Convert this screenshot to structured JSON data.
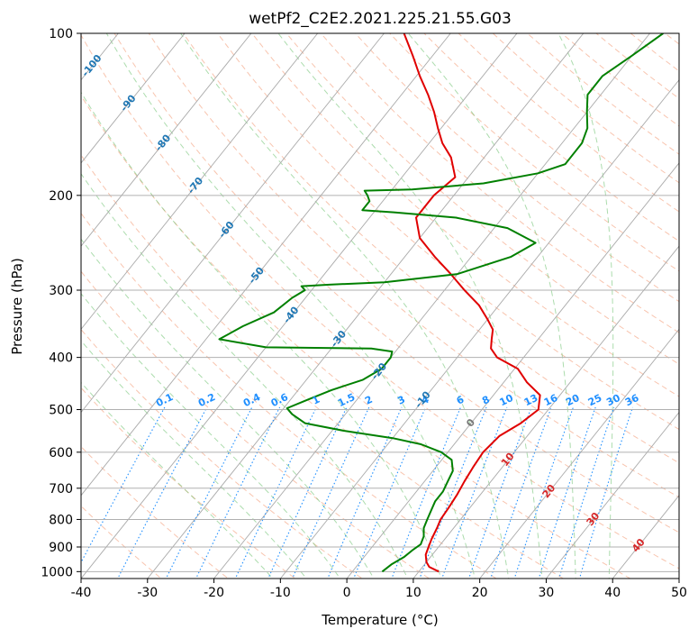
{
  "chart_data": {
    "type": "line",
    "title": "wetPf2_C2E2.2021.225.21.55.G03",
    "xlabel": "Temperature (°C)",
    "ylabel": "Pressure (hPa)",
    "xlim": [
      -40,
      50
    ],
    "ylim": [
      1030,
      100
    ],
    "y_scale": "log",
    "skew": true,
    "grid": true,
    "x_ticks": [
      -40,
      -30,
      -20,
      -10,
      0,
      10,
      20,
      30,
      40,
      50
    ],
    "y_ticks": [
      100,
      200,
      300,
      400,
      500,
      600,
      700,
      800,
      900,
      1000
    ],
    "colors": {
      "temperature": "#e00000",
      "dewpoint": "#008000",
      "mixing_ratio_labels": "#1f8fff",
      "isotherm_labels_cold": "#1f77b4",
      "isotherm_labels_warm": "#d62728",
      "isotherm_label_zero": "#777777",
      "dry_adiabats": "#f4a582",
      "moist_adiabats": "#74c476",
      "isotherms": "#aaaaaa"
    },
    "isotherm_labels": [
      "-100",
      "-90",
      "-80",
      "-70",
      "-60",
      "-50",
      "-40",
      "-30",
      "-20",
      "-10",
      "0",
      "10",
      "20",
      "30",
      "40"
    ],
    "mixing_ratio_labels": [
      "0.1",
      "0.2",
      "0.4",
      "0.6",
      "1",
      "1.5",
      "2",
      "3",
      "4",
      "6",
      "8",
      "10",
      "13",
      "16",
      "20",
      "25",
      "30",
      "36"
    ],
    "series": [
      {
        "key": "temperature",
        "values": [
          [
            1000,
            13
          ],
          [
            980,
            11
          ],
          [
            960,
            10
          ],
          [
            930,
            9
          ],
          [
            900,
            8.5
          ],
          [
            870,
            8
          ],
          [
            830,
            7.5
          ],
          [
            800,
            7
          ],
          [
            760,
            6.8
          ],
          [
            720,
            6.5
          ],
          [
            680,
            6
          ],
          [
            640,
            5.6
          ],
          [
            600,
            5.3
          ],
          [
            560,
            5.8
          ],
          [
            530,
            7.5
          ],
          [
            500,
            8.5
          ],
          [
            470,
            7
          ],
          [
            445,
            3.5
          ],
          [
            420,
            0.5
          ],
          [
            400,
            -4
          ],
          [
            385,
            -6
          ],
          [
            370,
            -7
          ],
          [
            355,
            -8
          ],
          [
            340,
            -10
          ],
          [
            320,
            -13
          ],
          [
            300,
            -17
          ],
          [
            280,
            -21
          ],
          [
            260,
            -25.5
          ],
          [
            240,
            -30
          ],
          [
            220,
            -33
          ],
          [
            200,
            -33
          ],
          [
            185,
            -32
          ],
          [
            170,
            -35
          ],
          [
            160,
            -38
          ],
          [
            150,
            -40.5
          ],
          [
            140,
            -43
          ],
          [
            130,
            -46
          ],
          [
            120,
            -49.5
          ],
          [
            110,
            -53
          ],
          [
            100,
            -57
          ]
        ]
      },
      {
        "key": "dewpoint",
        "values": [
          [
            1000,
            4.5
          ],
          [
            970,
            5
          ],
          [
            940,
            6
          ],
          [
            910,
            6.5
          ],
          [
            890,
            7
          ],
          [
            860,
            6.5
          ],
          [
            830,
            5.5
          ],
          [
            800,
            5
          ],
          [
            770,
            4.5
          ],
          [
            740,
            4
          ],
          [
            710,
            4
          ],
          [
            680,
            3.5
          ],
          [
            650,
            3
          ],
          [
            620,
            1.5
          ],
          [
            600,
            -1
          ],
          [
            580,
            -5
          ],
          [
            565,
            -10
          ],
          [
            548,
            -18
          ],
          [
            530,
            -25
          ],
          [
            510,
            -28
          ],
          [
            497,
            -29.5
          ],
          [
            480,
            -27.5
          ],
          [
            460,
            -25
          ],
          [
            440,
            -21.5
          ],
          [
            420,
            -20
          ],
          [
            400,
            -20
          ],
          [
            390,
            -20.5
          ],
          [
            385,
            -24
          ],
          [
            383,
            -40
          ],
          [
            370,
            -48
          ],
          [
            350,
            -46
          ],
          [
            330,
            -43
          ],
          [
            310,
            -42
          ],
          [
            300,
            -41
          ],
          [
            295,
            -42
          ],
          [
            293,
            -38
          ],
          [
            290,
            -30
          ],
          [
            280,
            -20
          ],
          [
            260,
            -14
          ],
          [
            245,
            -12
          ],
          [
            230,
            -18
          ],
          [
            220,
            -27
          ],
          [
            215,
            -37
          ],
          [
            213,
            -42
          ],
          [
            205,
            -42
          ],
          [
            200,
            -43
          ],
          [
            196,
            -44
          ],
          [
            195,
            -37
          ],
          [
            190,
            -27
          ],
          [
            182,
            -20
          ],
          [
            175,
            -17
          ],
          [
            160,
            -17
          ],
          [
            150,
            -18
          ],
          [
            140,
            -20
          ],
          [
            130,
            -22
          ],
          [
            120,
            -22
          ],
          [
            110,
            -20
          ],
          [
            100,
            -18
          ]
        ]
      }
    ]
  }
}
